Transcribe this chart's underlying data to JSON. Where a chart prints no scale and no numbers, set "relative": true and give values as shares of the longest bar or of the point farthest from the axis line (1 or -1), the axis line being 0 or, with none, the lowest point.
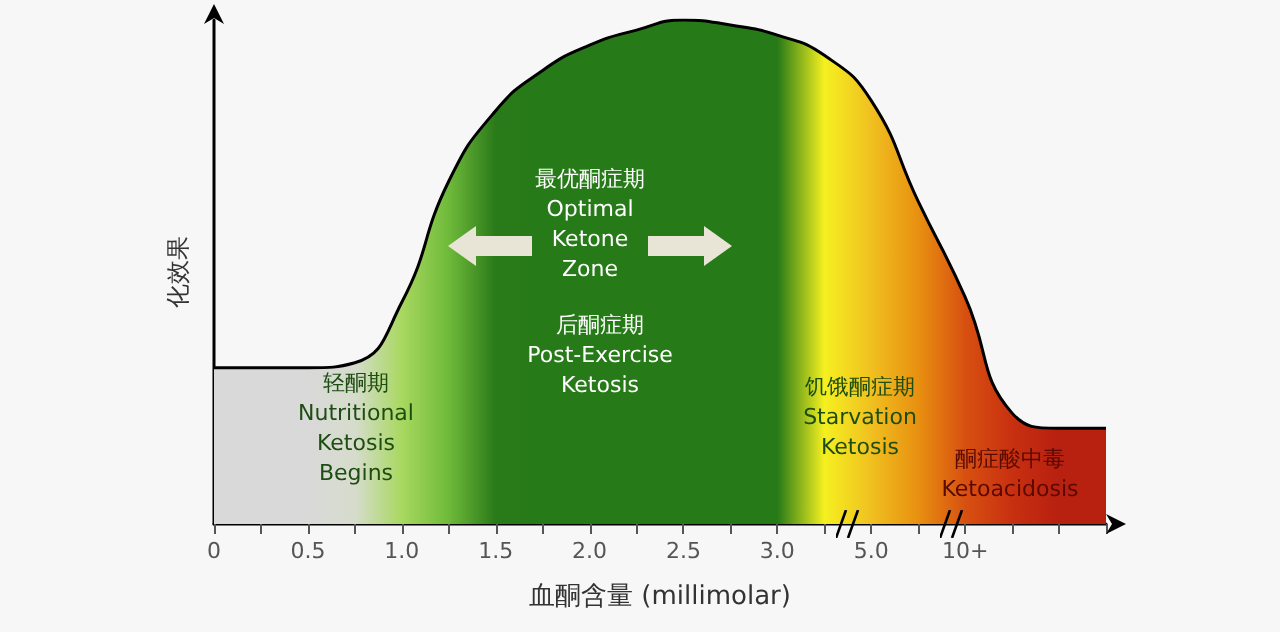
{
  "chart_data": {
    "type": "area",
    "relative": true,
    "xlabel": "血酮含量 (millimolar)",
    "ylabel": "化效果",
    "categories": [
      "0",
      null,
      "0.5",
      null,
      "1.0",
      null,
      "1.5",
      null,
      "2.0",
      null,
      "2.5",
      null,
      "3.0",
      null,
      "5.0",
      null,
      "10+",
      null,
      null,
      null
    ],
    "series": [
      {
        "color": "#000000",
        "values": [
          0.31,
          0.31,
          0.31,
          0.32,
          0.44,
          0.68,
          0.82,
          0.9,
          0.95,
          0.98,
          1,
          0.99,
          0.97,
          0.93,
          0.84,
          0.64,
          0.45,
          0.22,
          0.19,
          0.19
        ],
        "colors": [
          "#d9d9d9",
          "#d9d9d9",
          "#d9d9d9",
          "#d6dccc",
          "#a8d860",
          "#6fba3a",
          "#2a7a1a",
          "#277a18",
          "#277a18",
          "#277a18",
          "#277a18",
          "#277a18",
          "#277a18",
          "#f5f020",
          "#f0c020",
          "#e89010",
          "#d85010",
          "#c83010",
          "#b82010",
          "#b82010"
        ]
      }
    ],
    "annotations": [
      "最优酮症期\nOptimal\nKetone\nZone",
      "后酮症期\nPost-Exercise\nKetosis",
      "轻酮期\nNutritional\nKetosis\nBegins",
      "饥饿酮症期\nStarvation\nKetosis",
      "酮症酸中毒\nKetoacidosis"
    ],
    "grid": false,
    "marker": "none"
  }
}
